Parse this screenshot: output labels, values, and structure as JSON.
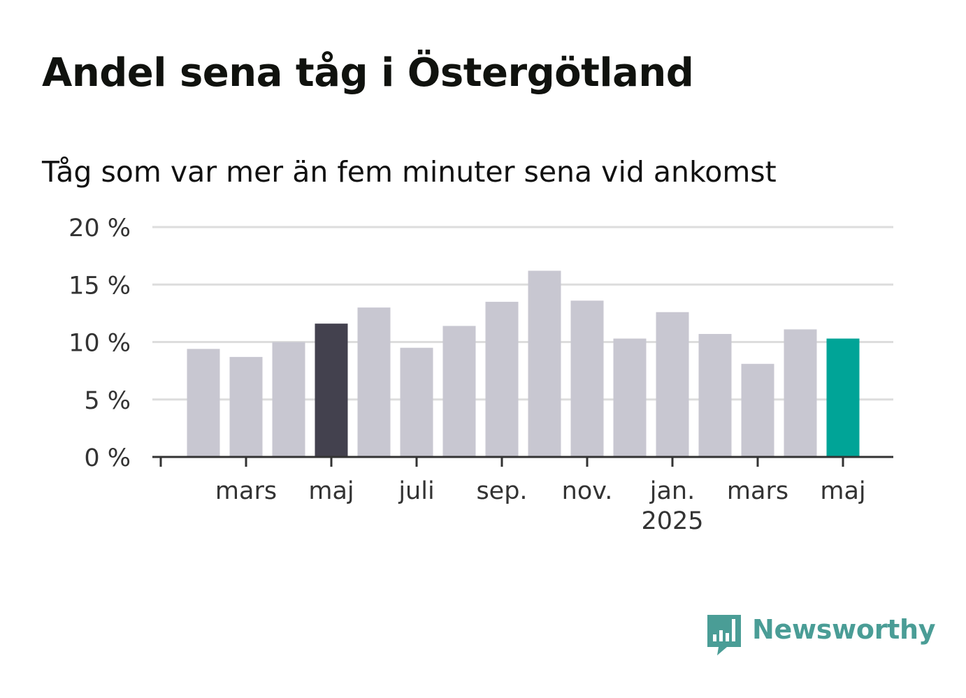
{
  "title": "Andel sena tåg i Östergötland",
  "subtitle": "Tåg som var mer än fem minuter sena vid ankomst",
  "brand": {
    "name": "Newsworthy",
    "icon": "newsworthy-bar-chart-icon",
    "color": "#4a9d96"
  },
  "colors": {
    "default_bar": "#c8c7d1",
    "highlight_bar": "#43414e",
    "current_bar": "#00a497",
    "gridline": "#dddddd",
    "axis": "#333333"
  },
  "chart_data": {
    "type": "bar",
    "title": "Andel sena tåg i Östergötland",
    "subtitle": "Tåg som var mer än fem minuter sena vid ankomst",
    "categories": [
      "2024-02",
      "2024-03",
      "2024-04",
      "2024-05",
      "2024-06",
      "2024-07",
      "2024-08",
      "2024-09",
      "2024-10",
      "2024-11",
      "2024-12",
      "2025-01",
      "2025-02",
      "2025-03",
      "2025-04",
      "2025-05"
    ],
    "values": [
      9.4,
      8.7,
      10.0,
      11.6,
      13.0,
      9.5,
      11.4,
      13.5,
      16.2,
      13.6,
      10.3,
      12.6,
      10.7,
      8.1,
      11.1,
      10.3
    ],
    "highlight": {
      "2024-05": "highlight_bar",
      "2025-05": "current_bar"
    },
    "ylim": [
      0,
      20
    ],
    "yticks": [
      0,
      5,
      10,
      15,
      20
    ],
    "ytick_labels": [
      "0 %",
      "5 %",
      "10 %",
      "15 %",
      "20 %"
    ],
    "xtick_labels": [
      {
        "month": "2024-03",
        "label": "mars"
      },
      {
        "month": "2024-05",
        "label": "maj"
      },
      {
        "month": "2024-07",
        "label": "juli"
      },
      {
        "month": "2024-09",
        "label": "sep."
      },
      {
        "month": "2024-11",
        "label": "nov."
      },
      {
        "month": "2025-01",
        "label": "jan.",
        "sublabel": "2025"
      },
      {
        "month": "2025-03",
        "label": "mars"
      },
      {
        "month": "2025-05",
        "label": "maj"
      }
    ],
    "grid": true,
    "legend": "none"
  }
}
